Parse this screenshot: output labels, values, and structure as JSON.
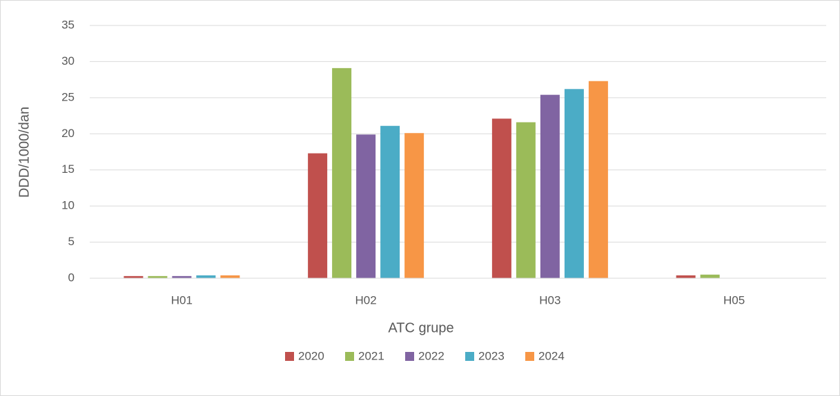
{
  "chart_data": {
    "type": "bar",
    "categories": [
      "H01",
      "H02",
      "H03",
      "H05"
    ],
    "series": [
      {
        "name": "2020",
        "color": "#c0504d",
        "values": [
          0.3,
          17.3,
          22.1,
          0.4
        ]
      },
      {
        "name": "2021",
        "color": "#9bbb59",
        "values": [
          0.3,
          29.1,
          21.6,
          0.5
        ]
      },
      {
        "name": "2022",
        "color": "#8064a2",
        "values": [
          0.3,
          19.9,
          25.4,
          null
        ]
      },
      {
        "name": "2023",
        "color": "#4bacc6",
        "values": [
          0.4,
          21.1,
          26.2,
          null
        ]
      },
      {
        "name": "2024",
        "color": "#f79646",
        "values": [
          0.4,
          20.1,
          27.3,
          null
        ]
      }
    ],
    "xlabel": "ATC grupe",
    "ylabel": "DDD/1000/dan",
    "ylim": [
      0,
      35
    ],
    "yticks": [
      0,
      5,
      10,
      15,
      20,
      25,
      30,
      35
    ],
    "grid": true,
    "legend": "bottom"
  }
}
